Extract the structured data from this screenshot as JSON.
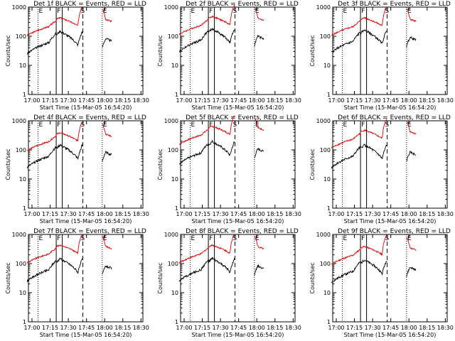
{
  "chart_data": {
    "type": "line",
    "xlabel": "Start Time (15-Mar-05 16:54:20)",
    "ylabel": "Counts/sec",
    "x_ticks": [
      "17:00",
      "17:15",
      "17:30",
      "17:45",
      "18:00",
      "18:15",
      "18:30"
    ],
    "x_range_min": [
      -4,
      34
    ],
    "y_scale": "log",
    "ylim": [
      1,
      1000
    ],
    "y_ticks": [
      "1",
      "10",
      "100",
      "1000"
    ],
    "markers": [
      {
        "x_min": 5,
        "label": "E",
        "style": "dotted"
      },
      {
        "x_min": 20,
        "label": "F",
        "style": "solid"
      },
      {
        "x_min": 25,
        "label": "",
        "style": "solid"
      },
      {
        "x_min": 42,
        "label": "S",
        "style": "dashed"
      },
      {
        "x_min": 58,
        "label": "E",
        "style": "dotted"
      }
    ],
    "panels": [
      {
        "title": "Det 1f BLACK = Events, RED = LLD",
        "red_scale": 1.0,
        "black_scale": 1.0
      },
      {
        "title": "Det 2f BLACK = Events, RED = LLD",
        "red_scale": 1.1,
        "black_scale": 1.2
      },
      {
        "title": "Det 3f BLACK = Events, RED = LLD",
        "red_scale": 1.0,
        "black_scale": 1.1
      },
      {
        "title": "Det 4f BLACK = Events, RED = LLD",
        "red_scale": 0.9,
        "black_scale": 1.0
      },
      {
        "title": "Det 5f BLACK = Events, RED = LLD",
        "red_scale": 1.5,
        "black_scale": 1.3
      },
      {
        "title": "Det 6f BLACK = Events, RED = LLD",
        "red_scale": 1.1,
        "black_scale": 1.0
      },
      {
        "title": "Det 7f BLACK = Events, RED = LLD",
        "red_scale": 1.0,
        "black_scale": 1.0
      },
      {
        "title": "Det 8f BLACK = Events, RED = LLD",
        "red_scale": 1.0,
        "black_scale": 1.0
      },
      {
        "title": "Det 9f BLACK = Events, RED = LLD",
        "red_scale": 0.9,
        "black_scale": 0.9
      }
    ],
    "colors": {
      "red": "#e00000",
      "black": "#000000"
    }
  }
}
